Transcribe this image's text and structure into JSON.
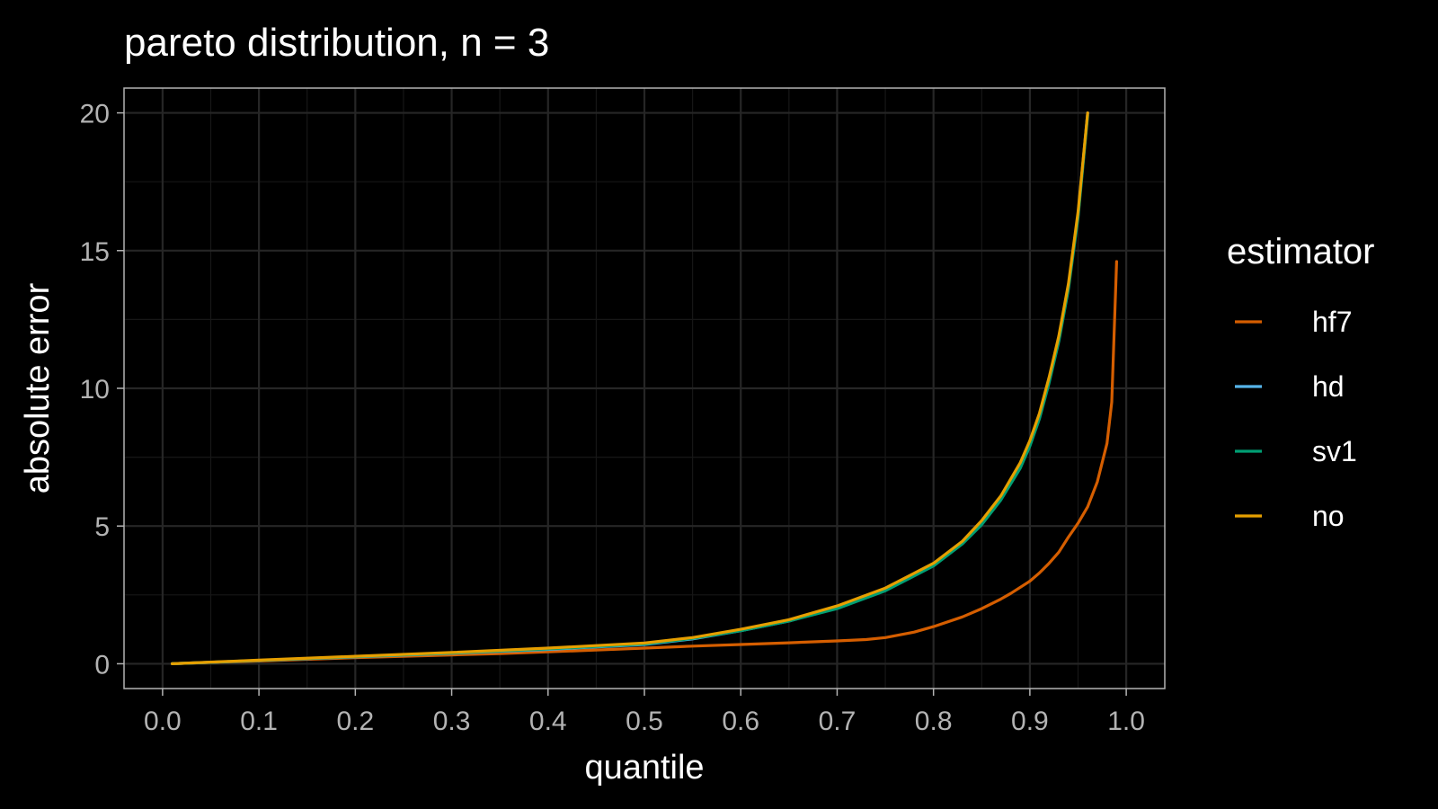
{
  "chart_data": {
    "type": "line",
    "title": "pareto distribution, n = 3",
    "xlabel": "quantile",
    "ylabel": "absolute error",
    "xlim": [
      -0.04,
      1.04
    ],
    "ylim": [
      -0.9,
      20.9
    ],
    "x_ticks": [
      0.0,
      0.1,
      0.2,
      0.3,
      0.4,
      0.5,
      0.6,
      0.7,
      0.8,
      0.9,
      1.0
    ],
    "x_tick_labels": [
      "0.0",
      "0.1",
      "0.2",
      "0.3",
      "0.4",
      "0.5",
      "0.6",
      "0.7",
      "0.8",
      "0.9",
      "1.0"
    ],
    "y_ticks": [
      0,
      5,
      10,
      15,
      20
    ],
    "y_tick_labels": [
      "0",
      "5",
      "10",
      "15",
      "20"
    ],
    "grid": true,
    "legend": {
      "title": "estimator",
      "position": "right"
    },
    "series": [
      {
        "name": "hf7",
        "color": "#D55E00",
        "points": [
          [
            0.01,
            0.0
          ],
          [
            0.05,
            0.05
          ],
          [
            0.1,
            0.1
          ],
          [
            0.15,
            0.16
          ],
          [
            0.2,
            0.22
          ],
          [
            0.25,
            0.27
          ],
          [
            0.3,
            0.32
          ],
          [
            0.35,
            0.37
          ],
          [
            0.4,
            0.43
          ],
          [
            0.45,
            0.5
          ],
          [
            0.5,
            0.57
          ],
          [
            0.55,
            0.64
          ],
          [
            0.6,
            0.7
          ],
          [
            0.65,
            0.76
          ],
          [
            0.7,
            0.83
          ],
          [
            0.73,
            0.88
          ],
          [
            0.75,
            0.95
          ],
          [
            0.78,
            1.15
          ],
          [
            0.8,
            1.35
          ],
          [
            0.83,
            1.7
          ],
          [
            0.85,
            2.0
          ],
          [
            0.87,
            2.35
          ],
          [
            0.88,
            2.55
          ],
          [
            0.9,
            3.0
          ],
          [
            0.91,
            3.3
          ],
          [
            0.92,
            3.65
          ],
          [
            0.93,
            4.05
          ],
          [
            0.94,
            4.6
          ],
          [
            0.95,
            5.1
          ],
          [
            0.96,
            5.7
          ],
          [
            0.97,
            6.6
          ],
          [
            0.98,
            8.0
          ],
          [
            0.985,
            9.5
          ],
          [
            0.99,
            14.6
          ]
        ]
      },
      {
        "name": "hd",
        "color": "#56B4E9",
        "points": [
          [
            0.01,
            0.0
          ],
          [
            0.1,
            0.12
          ],
          [
            0.2,
            0.25
          ],
          [
            0.3,
            0.38
          ],
          [
            0.4,
            0.52
          ],
          [
            0.5,
            0.7
          ],
          [
            0.55,
            0.9
          ],
          [
            0.6,
            1.2
          ],
          [
            0.65,
            1.55
          ],
          [
            0.7,
            2.05
          ],
          [
            0.75,
            2.7
          ],
          [
            0.8,
            3.6
          ],
          [
            0.83,
            4.4
          ],
          [
            0.85,
            5.1
          ],
          [
            0.87,
            6.0
          ],
          [
            0.89,
            7.2
          ],
          [
            0.9,
            8.0
          ],
          [
            0.91,
            9.0
          ],
          [
            0.92,
            10.3
          ],
          [
            0.93,
            11.8
          ],
          [
            0.94,
            13.7
          ],
          [
            0.95,
            16.3
          ],
          [
            0.96,
            20.0
          ]
        ]
      },
      {
        "name": "sv1",
        "color": "#009E73",
        "points": [
          [
            0.01,
            0.0
          ],
          [
            0.1,
            0.12
          ],
          [
            0.2,
            0.26
          ],
          [
            0.3,
            0.39
          ],
          [
            0.4,
            0.54
          ],
          [
            0.5,
            0.72
          ],
          [
            0.55,
            0.92
          ],
          [
            0.6,
            1.2
          ],
          [
            0.65,
            1.55
          ],
          [
            0.7,
            2.0
          ],
          [
            0.75,
            2.65
          ],
          [
            0.8,
            3.55
          ],
          [
            0.83,
            4.35
          ],
          [
            0.85,
            5.05
          ],
          [
            0.87,
            5.95
          ],
          [
            0.89,
            7.1
          ],
          [
            0.9,
            7.9
          ],
          [
            0.91,
            8.9
          ],
          [
            0.92,
            10.2
          ],
          [
            0.93,
            11.7
          ],
          [
            0.94,
            13.6
          ],
          [
            0.95,
            16.2
          ],
          [
            0.96,
            19.9
          ]
        ]
      },
      {
        "name": "no",
        "color": "#E69F00",
        "points": [
          [
            0.01,
            0.0
          ],
          [
            0.1,
            0.13
          ],
          [
            0.2,
            0.27
          ],
          [
            0.3,
            0.41
          ],
          [
            0.4,
            0.57
          ],
          [
            0.5,
            0.75
          ],
          [
            0.55,
            0.95
          ],
          [
            0.6,
            1.25
          ],
          [
            0.65,
            1.6
          ],
          [
            0.7,
            2.1
          ],
          [
            0.75,
            2.75
          ],
          [
            0.8,
            3.65
          ],
          [
            0.83,
            4.45
          ],
          [
            0.85,
            5.2
          ],
          [
            0.87,
            6.1
          ],
          [
            0.89,
            7.3
          ],
          [
            0.9,
            8.1
          ],
          [
            0.91,
            9.1
          ],
          [
            0.92,
            10.4
          ],
          [
            0.93,
            11.9
          ],
          [
            0.94,
            13.8
          ],
          [
            0.95,
            16.4
          ],
          [
            0.96,
            20.0
          ]
        ]
      }
    ]
  }
}
